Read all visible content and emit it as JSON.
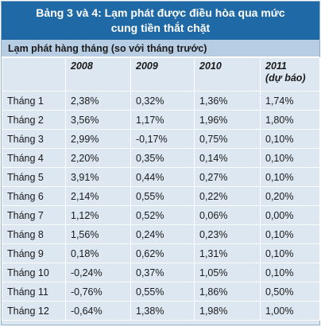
{
  "title_line1": "Bảng 3 và 4: Lạm phát được điều hòa qua mức",
  "title_line2": "cung tiền thắt chặt",
  "subtitle": "Lạm phát hàng tháng (so với tháng trước)",
  "columns": [
    {
      "label": "",
      "sub": ""
    },
    {
      "label": "2008",
      "sub": ""
    },
    {
      "label": "2009",
      "sub": ""
    },
    {
      "label": "2010",
      "sub": ""
    },
    {
      "label": "2011",
      "sub": "(dự báo)"
    }
  ],
  "rows": [
    [
      "Tháng 1",
      "2,38%",
      "0,32%",
      "1,36%",
      "1,74%"
    ],
    [
      "Tháng 2",
      "3,56%",
      "1,17%",
      "1,96%",
      "1,80%"
    ],
    [
      "Tháng 3",
      "2,99%",
      "-0,17%",
      "0,75%",
      "0,10%"
    ],
    [
      "Tháng 4",
      "2,20%",
      "0,35%",
      "0,14%",
      "0,10%"
    ],
    [
      "Tháng 5",
      "3,91%",
      "0,44%",
      "0,27%",
      "0,10%"
    ],
    [
      "Tháng 6",
      "2,14%",
      "0,55%",
      "0,22%",
      "0,20%"
    ],
    [
      "Tháng 7",
      "1,12%",
      "0,52%",
      "0,06%",
      "0,00%"
    ],
    [
      "Tháng 8",
      "1,56%",
      "0,24%",
      "0,23%",
      "0,10%"
    ],
    [
      "Tháng 9",
      "0,18%",
      "0,62%",
      "1,31%",
      "0,10%"
    ],
    [
      "Tháng 10",
      "-0,24%",
      "0,37%",
      "1,05%",
      "0,10%"
    ],
    [
      "Tháng 11",
      "-0,76%",
      "0,55%",
      "1,86%",
      "0,50%"
    ],
    [
      "Tháng 12",
      "-0,64%",
      "1,38%",
      "1,98%",
      "1,00%"
    ]
  ]
}
